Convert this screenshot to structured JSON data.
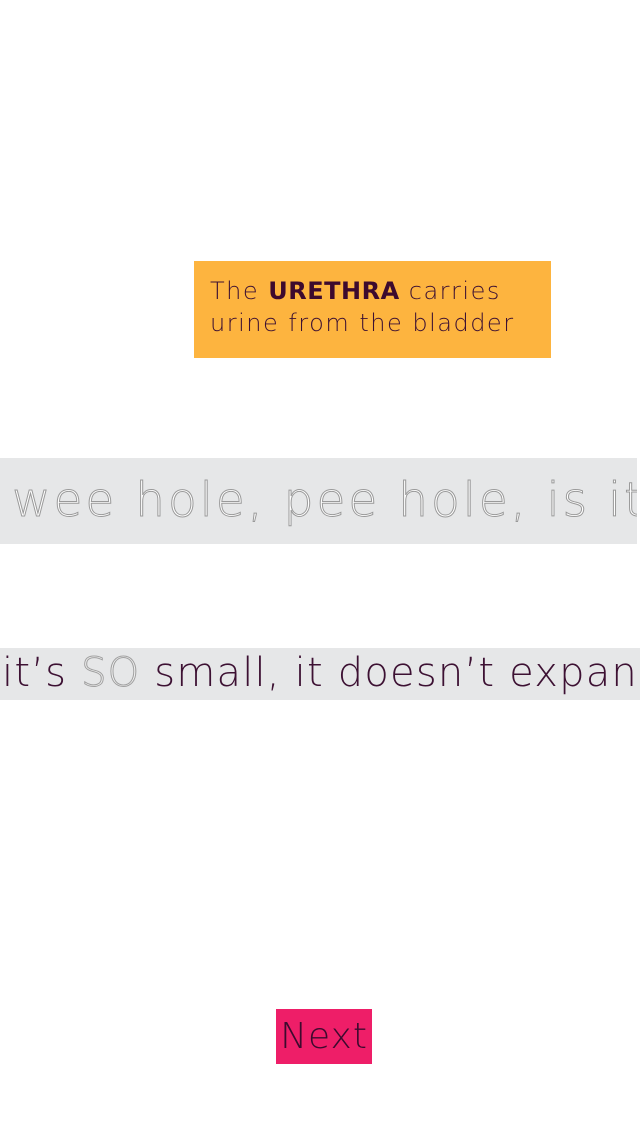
{
  "info_card": {
    "text_before": "The ",
    "term": "URETHRA",
    "text_after_line1": " carries",
    "line2": "urine from the bladder"
  },
  "tracing_prompt": {
    "text": "wee hole, pee hole, is it?"
  },
  "fact_line": {
    "part1": "it’s ",
    "emphasis": "SO",
    "part2": " small, it doesn’t expand"
  },
  "next_button": {
    "label": "Next"
  },
  "colors": {
    "info_card_bg": "#fdb43f",
    "band_bg": "#e6e7e8",
    "text_dark": "#3d1133",
    "next_button_bg": "#ee1e68"
  }
}
